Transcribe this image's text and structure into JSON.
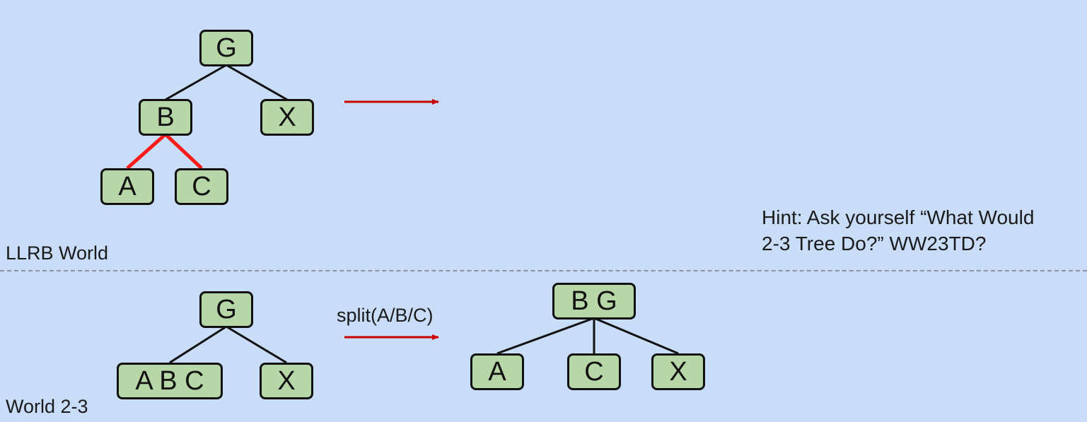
{
  "llrb": {
    "world_label": "LLRB World",
    "nodes": {
      "g": "G",
      "b": "B",
      "x": "X",
      "a": "A",
      "c": "C"
    },
    "red_link_color": "#ff1a1a"
  },
  "tree23": {
    "world_label": "World 2-3",
    "before_nodes": {
      "g": "G",
      "abc": "A B C",
      "x": "X"
    },
    "operation_label": "split(A/B/C)",
    "after_nodes": {
      "bg": "B G",
      "a": "A",
      "c": "C",
      "x": "X"
    }
  },
  "hint": {
    "line1": "Hint: Ask yourself “What Would",
    "line2": "2-3 Tree Do?” WW23TD?"
  },
  "colors": {
    "background": "#c9dcf8",
    "node_fill": "#b7d7a8",
    "arrow": "#cc0000",
    "link": "#111111"
  }
}
